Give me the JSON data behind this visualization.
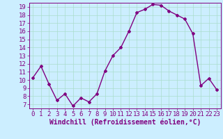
{
  "x": [
    0,
    1,
    2,
    3,
    4,
    5,
    6,
    7,
    8,
    9,
    10,
    11,
    12,
    13,
    14,
    15,
    16,
    17,
    18,
    19,
    20,
    21,
    22,
    23
  ],
  "y": [
    10.3,
    11.7,
    9.5,
    7.5,
    8.3,
    6.8,
    7.8,
    7.3,
    8.3,
    11.1,
    13.0,
    14.0,
    16.0,
    18.3,
    18.7,
    19.3,
    19.2,
    18.5,
    18.0,
    17.5,
    15.7,
    9.3,
    10.2,
    8.8
  ],
  "line_color": "#800080",
  "marker": "D",
  "marker_size": 2,
  "line_width": 1.0,
  "bg_color": "#cceeff",
  "xlabel": "Windchill (Refroidissement éolien,°C)",
  "xlabel_fontsize": 7,
  "tick_fontsize": 6.5,
  "ylim": [
    7,
    19
  ],
  "yticks": [
    7,
    8,
    9,
    10,
    11,
    12,
    13,
    14,
    15,
    16,
    17,
    18,
    19
  ],
  "xlim": [
    -0.5,
    23.5
  ],
  "grid_color": "#aaddcc",
  "tick_color": "#800080",
  "label_color": "#800080"
}
